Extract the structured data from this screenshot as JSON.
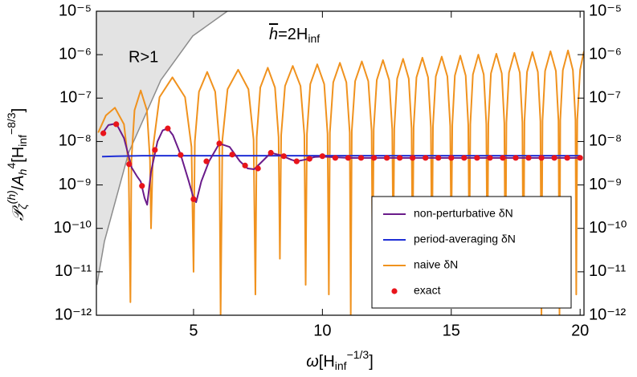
{
  "chart_data": {
    "type": "line",
    "annotation": [
      "h",
      "=2H",
      "inf"
    ],
    "xlabel": [
      "ω",
      "[H",
      "inf",
      "−1/3",
      "]"
    ],
    "ylabel": [
      "𝒫",
      "ζ",
      "(h)",
      "/",
      "A",
      "h",
      "4",
      "[H",
      "inf",
      "−8/3",
      "]"
    ],
    "xlim": [
      1.23,
      20.15
    ],
    "ylim": [
      1e-12,
      1e-05
    ],
    "log_y": true,
    "xticks": [
      5,
      10,
      15,
      20
    ],
    "yticks": [
      {
        "value": 1e-05,
        "label": "10⁻⁵"
      },
      {
        "value": 1e-06,
        "label": "10⁻⁶"
      },
      {
        "value": 1e-07,
        "label": "10⁻⁷"
      },
      {
        "value": 1e-08,
        "label": "10⁻⁸"
      },
      {
        "value": 1e-09,
        "label": "10⁻⁹"
      },
      {
        "value": 1e-10,
        "label": "10⁻¹⁰"
      },
      {
        "value": 1e-11,
        "label": "10⁻¹¹"
      },
      {
        "value": 1e-12,
        "label": "10⁻¹²"
      }
    ],
    "legend": "lower right",
    "region": {
      "label": "R>1",
      "color": "#e3e3e3",
      "edge": "#8c8c8c",
      "x": [
        1.25,
        1.54,
        2.48,
        3.73,
        4.97,
        6.31
      ],
      "values": [
        5e-12,
        5e-11,
        5.5e-09,
        2.6e-07,
        2.7e-06,
        1e-05
      ]
    },
    "series": [
      {
        "name": "non-perturbative δN",
        "color": "#6a1b8a",
        "mode": "line",
        "x": [
          1.45,
          1.7,
          2.0,
          2.3,
          2.6,
          2.8,
          2.95,
          3.1,
          3.2,
          3.35,
          3.6,
          3.8,
          4.0,
          4.2,
          4.5,
          4.8,
          5.0,
          5.1,
          5.3,
          5.6,
          6.0,
          6.4,
          6.8,
          7.1,
          7.35,
          7.6,
          8.0,
          8.4,
          8.8,
          9.0,
          9.3,
          9.7,
          10.0,
          11,
          12,
          14,
          16,
          18,
          20
        ],
        "values": [
          1.5e-08,
          2.4e-08,
          2.6e-08,
          1.2e-08,
          2.5e-09,
          1.6e-09,
          1.2e-09,
          5e-10,
          3.5e-10,
          2e-09,
          1e-08,
          1.8e-08,
          2e-08,
          1.4e-08,
          5e-09,
          1.3e-09,
          5e-10,
          4e-10,
          1.2e-09,
          3.5e-09,
          9e-09,
          7.5e-09,
          3.5e-09,
          2.4e-09,
          2.3e-09,
          3.2e-09,
          5.5e-09,
          4.8e-09,
          3.8e-09,
          3.5e-09,
          3.8e-09,
          4.4e-09,
          4.5e-09,
          4.2e-09,
          4.2e-09,
          4.2e-09,
          4.2e-09,
          4.2e-09,
          4.2e-09
        ]
      },
      {
        "name": "period-averaging δN",
        "color": "#1f2fd6",
        "mode": "line",
        "x": [
          1.45,
          2,
          3,
          5,
          10,
          20
        ],
        "values": [
          4.5e-09,
          4.6e-09,
          4.7e-09,
          4.7e-09,
          4.7e-09,
          4.7e-09
        ]
      },
      {
        "name": "naive δN",
        "color": "#f0921e",
        "mode": "line",
        "x": [
          1.3,
          1.6,
          1.95,
          2.3,
          2.48,
          2.55,
          2.59,
          2.71,
          2.95,
          3.19,
          3.31,
          3.35,
          3.43,
          3.68,
          4.18,
          4.67,
          4.92,
          5.0,
          5.05,
          5.21,
          5.53,
          5.84,
          6.0,
          6.05,
          6.12,
          6.32,
          6.73,
          7.13,
          7.33,
          7.4,
          7.45,
          7.59,
          7.88,
          8.16,
          8.3,
          8.35,
          8.4,
          8.55,
          8.85,
          9.15,
          9.3,
          9.35,
          9.4,
          9.53,
          9.8,
          10.07,
          10.2,
          10.25,
          10.29,
          10.42,
          10.68,
          10.93,
          11.06,
          11.1,
          11.14,
          11.27,
          11.53,
          11.78,
          11.91,
          11.95,
          11.99,
          12.11,
          12.35,
          12.59,
          12.71,
          12.75,
          12.79,
          12.9,
          13.13,
          13.35,
          13.46,
          13.5,
          13.54,
          13.65,
          13.88,
          14.1,
          14.21,
          14.25,
          14.29,
          14.4,
          14.63,
          14.85,
          14.96,
          15.0,
          15.04,
          15.14,
          15.35,
          15.56,
          15.66,
          15.7,
          15.74,
          15.84,
          16.05,
          16.26,
          16.36,
          16.4,
          16.44,
          16.54,
          16.75,
          16.96,
          17.06,
          17.1,
          17.14,
          17.24,
          17.45,
          17.66,
          17.76,
          17.8,
          17.84,
          17.94,
          18.15,
          18.36,
          18.46,
          18.5,
          18.54,
          18.64,
          18.85,
          19.06,
          19.16,
          19.2,
          19.23,
          19.33,
          19.53,
          19.72,
          19.82,
          19.85,
          19.89,
          20.0,
          20.15
        ],
        "values": [
          1.6e-08,
          4e-08,
          6e-08,
          2.5e-08,
          3e-09,
          2e-12,
          3.75e-09,
          5.25e-08,
          1.5e-07,
          5.25e-08,
          3.75e-09,
          1e-10,
          7.5e-09,
          1.05e-07,
          3e-07,
          1.05e-07,
          7.5e-09,
          1e-11,
          1e-08,
          1.4e-07,
          4e-07,
          1.4e-07,
          1e-08,
          1e-12,
          1.1e-08,
          1.6e-07,
          4.5e-07,
          1.6e-07,
          1.1e-08,
          3e-12,
          1.25e-08,
          1.75e-07,
          5e-07,
          1.75e-07,
          1.25e-08,
          2e-11,
          1.4e-08,
          1.9e-07,
          5.5e-07,
          1.9e-07,
          1.4e-08,
          5e-12,
          1.5e-08,
          2.1e-07,
          6e-07,
          2.1e-07,
          1.5e-08,
          3e-12,
          1.6e-08,
          2.3e-07,
          6.5e-07,
          2.3e-07,
          1.6e-08,
          1e-12,
          1.75e-08,
          2.45e-07,
          7e-07,
          2.45e-07,
          1.75e-08,
          1e-11,
          1.9e-08,
          2.6e-07,
          7.5e-07,
          2.6e-07,
          1.9e-08,
          3e-11,
          2e-08,
          2.8e-07,
          8e-07,
          2.8e-07,
          2e-08,
          2e-11,
          2.1e-08,
          3e-07,
          8.5e-07,
          3e-07,
          2.1e-08,
          1e-11,
          2.25e-08,
          3.15e-07,
          9e-07,
          3.15e-07,
          2.25e-08,
          5e-11,
          2.4e-08,
          3.3e-07,
          9.5e-07,
          3.3e-07,
          2.4e-08,
          3e-11,
          2.5e-08,
          3.5e-07,
          1e-06,
          3.5e-07,
          2.5e-08,
          1e-11,
          2.6e-08,
          3.7e-07,
          1.05e-06,
          3.7e-07,
          2.6e-08,
          5e-12,
          2.75e-08,
          3.85e-07,
          1.1e-06,
          3.85e-07,
          2.75e-08,
          2e-12,
          2.9e-08,
          4e-07,
          1.15e-06,
          4e-07,
          2.9e-08,
          1e-12,
          3e-08,
          4.2e-07,
          1.2e-06,
          4.2e-07,
          3e-08,
          1e-12,
          3.1e-08,
          4.4e-07,
          1.25e-06,
          4.4e-07,
          3.1e-08,
          3e-12,
          3.2e-08,
          4.5e-07,
          1.2e-06
        ]
      },
      {
        "name": "exact",
        "color": "#e8141b",
        "mode": "markers",
        "x": [
          1.5,
          2,
          2.5,
          3,
          3.5,
          4,
          4.5,
          5,
          5.5,
          6,
          6.5,
          7,
          7.5,
          8,
          8.5,
          9,
          9.5,
          10,
          10.5,
          11,
          11.5,
          12,
          12.5,
          13,
          13.5,
          14,
          14.5,
          15,
          15.5,
          16,
          16.5,
          17,
          17.5,
          18,
          18.5,
          19,
          19.5,
          20
        ],
        "values": [
          1.55e-08,
          2.5e-08,
          3e-09,
          9.5e-10,
          6.4e-09,
          2e-08,
          4.9e-09,
          4.7e-10,
          3.5e-09,
          9e-09,
          5e-09,
          2.8e-09,
          2.4e-09,
          5.5e-09,
          4.6e-09,
          3.5e-09,
          4e-09,
          4.6e-09,
          4.2e-09,
          4.2e-09,
          4.2e-09,
          4.2e-09,
          4.2e-09,
          4.2e-09,
          4.2e-09,
          4.2e-09,
          4.2e-09,
          4.2e-09,
          4.2e-09,
          4.2e-09,
          4.2e-09,
          4.2e-09,
          4.2e-09,
          4.2e-09,
          4.2e-09,
          4.2e-09,
          4.2e-09,
          4.2e-09
        ]
      }
    ]
  }
}
